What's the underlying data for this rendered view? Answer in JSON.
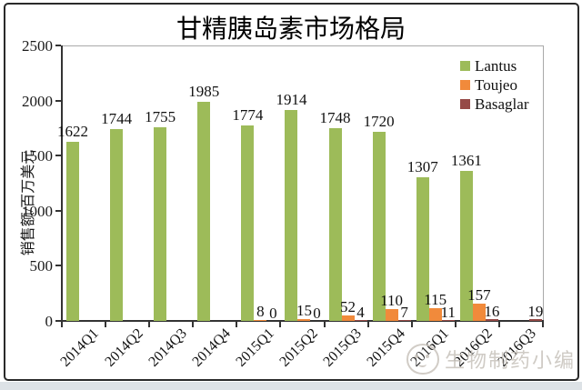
{
  "watermark": {
    "text": "生物制药小编"
  },
  "chart_data": {
    "type": "bar",
    "title": "甘精胰岛素市场格局",
    "ylabel": "销售额/百万美元",
    "xlabel": "",
    "ylim": [
      0,
      2500
    ],
    "yticks": [
      0,
      500,
      1000,
      1500,
      2000,
      2500
    ],
    "grid": false,
    "legend_position": "top-right-inside",
    "categories": [
      "2014Q1",
      "2014Q2",
      "2014Q3",
      "2014Q4",
      "2015Q1",
      "2015Q2",
      "2015Q3",
      "2015Q4",
      "2016Q1",
      "2016Q2",
      "2016Q3"
    ],
    "series": [
      {
        "name": "Lantus",
        "color": "#9DBB59",
        "values": [
          1622,
          1744,
          1755,
          1985,
          1774,
          1914,
          1748,
          1720,
          1307,
          1361,
          null
        ]
      },
      {
        "name": "Toujeo",
        "color": "#F18A3B",
        "values": [
          null,
          null,
          null,
          null,
          8,
          15,
          52,
          110,
          115,
          157,
          null
        ]
      },
      {
        "name": "Basaglar",
        "color": "#964A47",
        "values": [
          null,
          null,
          null,
          null,
          0,
          0,
          4,
          7,
          11,
          16,
          19
        ]
      }
    ]
  }
}
